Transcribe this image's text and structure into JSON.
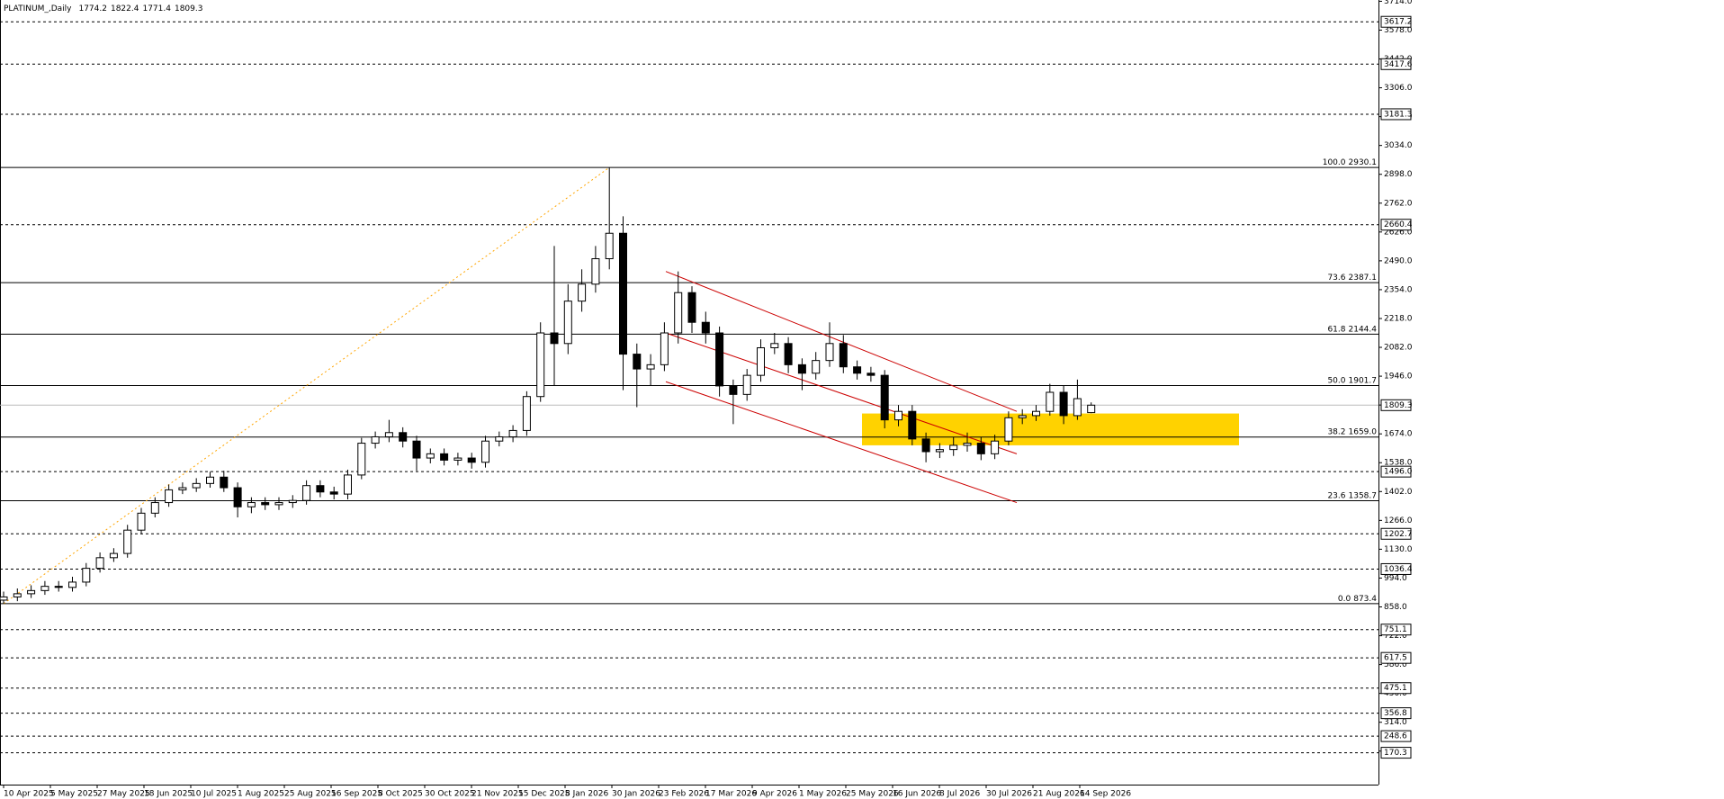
{
  "chart_data": {
    "type": "candlestick",
    "title": "PLATINUM_,Daily",
    "open": [
      890,
      905,
      920,
      935,
      955,
      950,
      975,
      1040,
      1090,
      1110,
      1220,
      1300,
      1350,
      1410,
      1420,
      1440,
      1470,
      1420,
      1330,
      1350,
      1340,
      1350,
      1360,
      1430,
      1400,
      1390,
      1480,
      1630,
      1660,
      1680,
      1640,
      1560,
      1580,
      1550,
      1560,
      1540,
      1640,
      1660,
      1690,
      1850,
      2150,
      2100,
      2300,
      2380,
      2500,
      2620,
      2050,
      1980,
      2000,
      2150,
      2340,
      2200,
      2150,
      1900,
      1860,
      1950,
      2080,
      2100,
      2000,
      1960,
      2020,
      2100,
      1990,
      1960,
      1950,
      1740,
      1780,
      1650,
      1590,
      1600,
      1620,
      1630,
      1580,
      1640,
      1750,
      1760,
      1780,
      1870,
      1760,
      1774.2
    ],
    "high": [
      930,
      945,
      960,
      980,
      980,
      1000,
      1065,
      1115,
      1135,
      1245,
      1325,
      1375,
      1435,
      1445,
      1465,
      1495,
      1500,
      1445,
      1375,
      1375,
      1375,
      1385,
      1455,
      1455,
      1425,
      1505,
      1655,
      1685,
      1740,
      1705,
      1665,
      1605,
      1605,
      1585,
      1585,
      1665,
      1685,
      1715,
      1875,
      2200,
      2560,
      2380,
      2450,
      2560,
      2930.1,
      2700,
      2100,
      2050,
      2200,
      2440,
      2370,
      2250,
      2180,
      1930,
      1980,
      2120,
      2150,
      2130,
      2030,
      2060,
      2200,
      2140,
      2020,
      1990,
      1975,
      1810,
      1810,
      1680,
      1630,
      1660,
      1680,
      1660,
      1670,
      1780,
      1790,
      1810,
      1910,
      1900,
      1930,
      1822.4
    ],
    "low": [
      873.4,
      885,
      900,
      915,
      930,
      930,
      955,
      1020,
      1070,
      1090,
      1200,
      1280,
      1330,
      1390,
      1400,
      1420,
      1400,
      1280,
      1300,
      1315,
      1315,
      1325,
      1340,
      1375,
      1365,
      1365,
      1460,
      1605,
      1635,
      1610,
      1500,
      1535,
      1525,
      1525,
      1510,
      1515,
      1615,
      1635,
      1665,
      1825,
      1900,
      2050,
      2250,
      2340,
      2450,
      1880,
      1800,
      1900,
      1970,
      2100,
      2150,
      2100,
      1850,
      1720,
      1830,
      1920,
      2050,
      1960,
      1880,
      1930,
      1990,
      1960,
      1930,
      1920,
      1700,
      1710,
      1620,
      1540,
      1560,
      1570,
      1590,
      1550,
      1555,
      1620,
      1720,
      1735,
      1760,
      1720,
      1740,
      1771.4
    ],
    "close": [
      905,
      920,
      935,
      955,
      950,
      975,
      1040,
      1090,
      1110,
      1220,
      1300,
      1350,
      1410,
      1420,
      1440,
      1470,
      1420,
      1330,
      1350,
      1340,
      1350,
      1360,
      1430,
      1400,
      1390,
      1480,
      1630,
      1660,
      1680,
      1640,
      1560,
      1580,
      1550,
      1560,
      1540,
      1640,
      1660,
      1690,
      1850,
      2150,
      2100,
      2300,
      2380,
      2500,
      2620,
      2050,
      1980,
      2000,
      2150,
      2340,
      2200,
      2150,
      1900,
      1860,
      1950,
      2080,
      2100,
      2000,
      1960,
      2020,
      2100,
      1990,
      1960,
      1950,
      1740,
      1780,
      1650,
      1590,
      1600,
      1620,
      1630,
      1580,
      1640,
      1750,
      1760,
      1780,
      1870,
      1760,
      1840,
      1809.3
    ],
    "x_labels": [
      "10 Apr 2025",
      "5 May 2025",
      "27 May 2025",
      "18 Jun 2025",
      "10 Jul 2025",
      "1 Aug 2025",
      "25 Aug 2025",
      "16 Sep 2025",
      "8 Oct 2025",
      "30 Oct 2025",
      "21 Nov 2025",
      "15 Dec 2025",
      "8 Jan 2026",
      "30 Jan 2026",
      "23 Feb 2026",
      "17 Mar 2026",
      "9 Apr 2026",
      "1 May 2026",
      "25 May 2026",
      "16 Jun 2026",
      "8 Jul 2026",
      "30 Jul 2026",
      "21 Aug 2026",
      "14 Sep 2026"
    ],
    "ylim": [
      20,
      3720
    ],
    "yticks": [
      {
        "value": 3714,
        "label": "3714.0"
      },
      {
        "value": 3578,
        "label": "3578.0"
      },
      {
        "value": 3442,
        "label": "3442.0"
      },
      {
        "value": 3306,
        "label": "3306.0"
      },
      {
        "value": 3170,
        "label": "3170.0"
      },
      {
        "value": 3034,
        "label": "3034.0"
      },
      {
        "value": 2898,
        "label": "2898.0"
      },
      {
        "value": 2762,
        "label": "2762.0"
      },
      {
        "value": 2626,
        "label": "2626.0"
      },
      {
        "value": 2490,
        "label": "2490.0"
      },
      {
        "value": 2354,
        "label": "2354.0"
      },
      {
        "value": 2218,
        "label": "2218.0"
      },
      {
        "value": 2082,
        "label": "2082.0"
      },
      {
        "value": 1946,
        "label": "1946.0"
      },
      {
        "value": 1810,
        "label": "1810.0"
      },
      {
        "value": 1674,
        "label": "1674.0"
      },
      {
        "value": 1538,
        "label": "1538.0"
      },
      {
        "value": 1402,
        "label": "1402.0"
      },
      {
        "value": 1266,
        "label": "1266.0"
      },
      {
        "value": 1130,
        "label": "1130.0"
      },
      {
        "value": 994,
        "label": "994.0"
      },
      {
        "value": 858,
        "label": "858.0"
      },
      {
        "value": 722,
        "label": "722.0"
      },
      {
        "value": 586,
        "label": "586.0"
      },
      {
        "value": 450,
        "label": "450.0"
      },
      {
        "value": 314,
        "label": "314.0"
      },
      {
        "value": 178,
        "label": "178.0"
      }
    ],
    "grid": false,
    "bull_color": "#ffffff",
    "bear_color": "#000000",
    "fib_levels": [
      {
        "ratio": "100.0",
        "price": 2930.1
      },
      {
        "ratio": "73.6",
        "price": 2387.1
      },
      {
        "ratio": "61.8",
        "price": 2144.4
      },
      {
        "ratio": "50.0",
        "price": 1901.7
      },
      {
        "ratio": "38.2",
        "price": {
          "value": 1659,
          "label": "1659.0"
        }
      },
      {
        "ratio": "23.6",
        "price": 1358.7
      },
      {
        "ratio": "0.0",
        "price": 873.4
      }
    ],
    "levels": [
      3617.2,
      3417.6,
      3181.3,
      2660.4,
      {
        "value": 1496,
        "label": "1496.0"
      },
      1202.7,
      1036.4,
      751.1,
      617.5,
      475.1,
      356.8,
      248.6,
      170.3
    ],
    "channel": [
      [
        2440,
        1780
      ],
      [
        2150,
        1580
      ],
      [
        1920,
        1350
      ]
    ],
    "channel_color": "#cc0000",
    "zone": [
      1620,
      1770
    ],
    "zone_color": "#ffd200",
    "trend_color": "#ffa500"
  }
}
